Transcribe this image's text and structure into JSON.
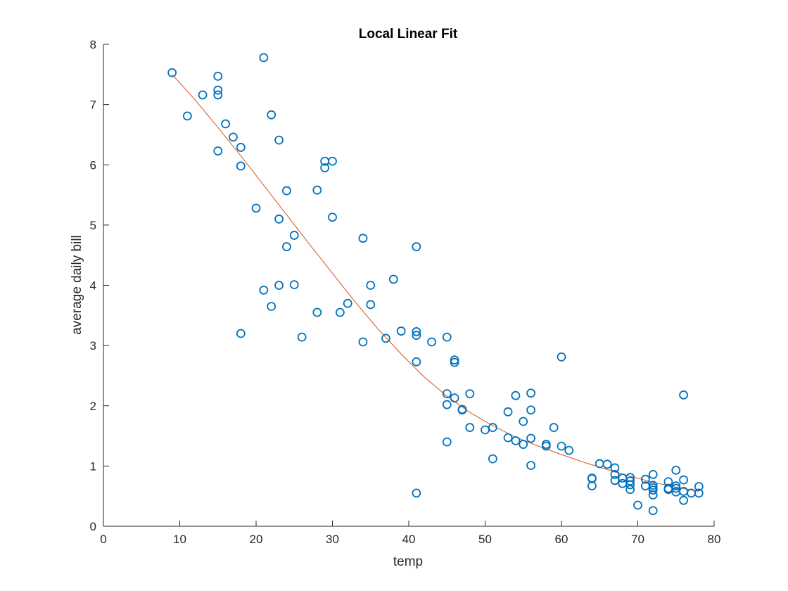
{
  "chart_data": {
    "type": "scatter",
    "title": "Local Linear Fit",
    "xlabel": "temp",
    "ylabel": "average daily bill",
    "xlim": [
      0,
      80
    ],
    "ylim": [
      0,
      8
    ],
    "xticks": [
      0,
      10,
      20,
      30,
      40,
      50,
      60,
      70,
      80
    ],
    "yticks": [
      0,
      1,
      2,
      3,
      4,
      5,
      6,
      7,
      8
    ],
    "grid": false,
    "series": [
      {
        "type": "scatter",
        "marker": "circle",
        "color": "#0072BD",
        "points": [
          [
            9,
            7.53
          ],
          [
            11,
            6.81
          ],
          [
            13,
            7.16
          ],
          [
            15,
            7.47
          ],
          [
            15,
            7.24
          ],
          [
            15,
            7.16
          ],
          [
            15,
            6.23
          ],
          [
            16,
            6.68
          ],
          [
            17,
            6.46
          ],
          [
            18,
            6.29
          ],
          [
            18,
            5.98
          ],
          [
            18,
            3.2
          ],
          [
            20,
            5.28
          ],
          [
            21,
            7.78
          ],
          [
            21,
            3.92
          ],
          [
            22,
            6.83
          ],
          [
            22,
            3.65
          ],
          [
            23,
            6.41
          ],
          [
            23,
            5.1
          ],
          [
            23,
            4.0
          ],
          [
            24,
            5.57
          ],
          [
            24,
            4.64
          ],
          [
            25,
            4.83
          ],
          [
            25,
            4.01
          ],
          [
            26,
            3.14
          ],
          [
            28,
            5.58
          ],
          [
            28,
            3.55
          ],
          [
            29,
            6.06
          ],
          [
            29,
            5.95
          ],
          [
            30,
            6.06
          ],
          [
            30,
            5.13
          ],
          [
            31,
            3.55
          ],
          [
            32,
            3.7
          ],
          [
            34,
            4.78
          ],
          [
            34,
            3.06
          ],
          [
            35,
            4.0
          ],
          [
            35,
            3.68
          ],
          [
            37,
            3.12
          ],
          [
            38,
            4.1
          ],
          [
            39,
            3.24
          ],
          [
            41,
            4.64
          ],
          [
            41,
            3.23
          ],
          [
            41,
            3.17
          ],
          [
            41,
            2.73
          ],
          [
            41,
            0.55
          ],
          [
            43,
            3.06
          ],
          [
            45,
            3.14
          ],
          [
            45,
            2.2
          ],
          [
            45,
            2.02
          ],
          [
            45,
            1.4
          ],
          [
            46,
            2.76
          ],
          [
            46,
            2.72
          ],
          [
            46,
            2.13
          ],
          [
            47,
            1.94
          ],
          [
            47,
            1.93
          ],
          [
            48,
            2.2
          ],
          [
            48,
            1.64
          ],
          [
            50,
            1.6
          ],
          [
            51,
            1.64
          ],
          [
            51,
            1.12
          ],
          [
            53,
            1.9
          ],
          [
            53,
            1.47
          ],
          [
            54,
            2.17
          ],
          [
            54,
            1.42
          ],
          [
            55,
            1.74
          ],
          [
            55,
            1.36
          ],
          [
            56,
            2.21
          ],
          [
            56,
            1.93
          ],
          [
            56,
            1.46
          ],
          [
            56,
            1.01
          ],
          [
            58,
            1.36
          ],
          [
            58,
            1.33
          ],
          [
            59,
            1.64
          ],
          [
            60,
            2.81
          ],
          [
            60,
            1.33
          ],
          [
            61,
            1.26
          ],
          [
            64,
            0.8
          ],
          [
            64,
            0.79
          ],
          [
            64,
            0.67
          ],
          [
            65,
            1.04
          ],
          [
            66,
            1.03
          ],
          [
            67,
            0.97
          ],
          [
            67,
            0.86
          ],
          [
            67,
            0.76
          ],
          [
            68,
            0.8
          ],
          [
            68,
            0.71
          ],
          [
            69,
            0.81
          ],
          [
            69,
            0.75
          ],
          [
            69,
            0.69
          ],
          [
            69,
            0.61
          ],
          [
            70,
            0.35
          ],
          [
            71,
            0.78
          ],
          [
            71,
            0.67
          ],
          [
            72,
            0.86
          ],
          [
            72,
            0.68
          ],
          [
            72,
            0.64
          ],
          [
            72,
            0.6
          ],
          [
            72,
            0.52
          ],
          [
            72,
            0.26
          ],
          [
            74,
            0.74
          ],
          [
            74,
            0.63
          ],
          [
            74,
            0.61
          ],
          [
            75,
            0.93
          ],
          [
            75,
            0.67
          ],
          [
            75,
            0.63
          ],
          [
            75,
            0.57
          ],
          [
            76,
            2.18
          ],
          [
            76,
            0.77
          ],
          [
            76,
            0.58
          ],
          [
            76,
            0.43
          ],
          [
            77,
            0.55
          ],
          [
            78,
            0.66
          ],
          [
            78,
            0.55
          ]
        ]
      },
      {
        "type": "line",
        "color": "#D95319",
        "x": [
          9,
          12,
          15,
          18,
          21,
          24,
          27,
          30,
          33,
          36,
          39,
          42,
          45,
          48,
          51,
          54,
          57,
          60,
          63,
          66,
          69,
          72,
          75,
          78
        ],
        "y": [
          7.5,
          7.08,
          6.62,
          6.15,
          5.66,
          5.17,
          4.68,
          4.2,
          3.72,
          3.27,
          2.86,
          2.48,
          2.16,
          1.89,
          1.67,
          1.48,
          1.33,
          1.19,
          1.06,
          0.94,
          0.83,
          0.73,
          0.65,
          0.58
        ]
      }
    ]
  }
}
